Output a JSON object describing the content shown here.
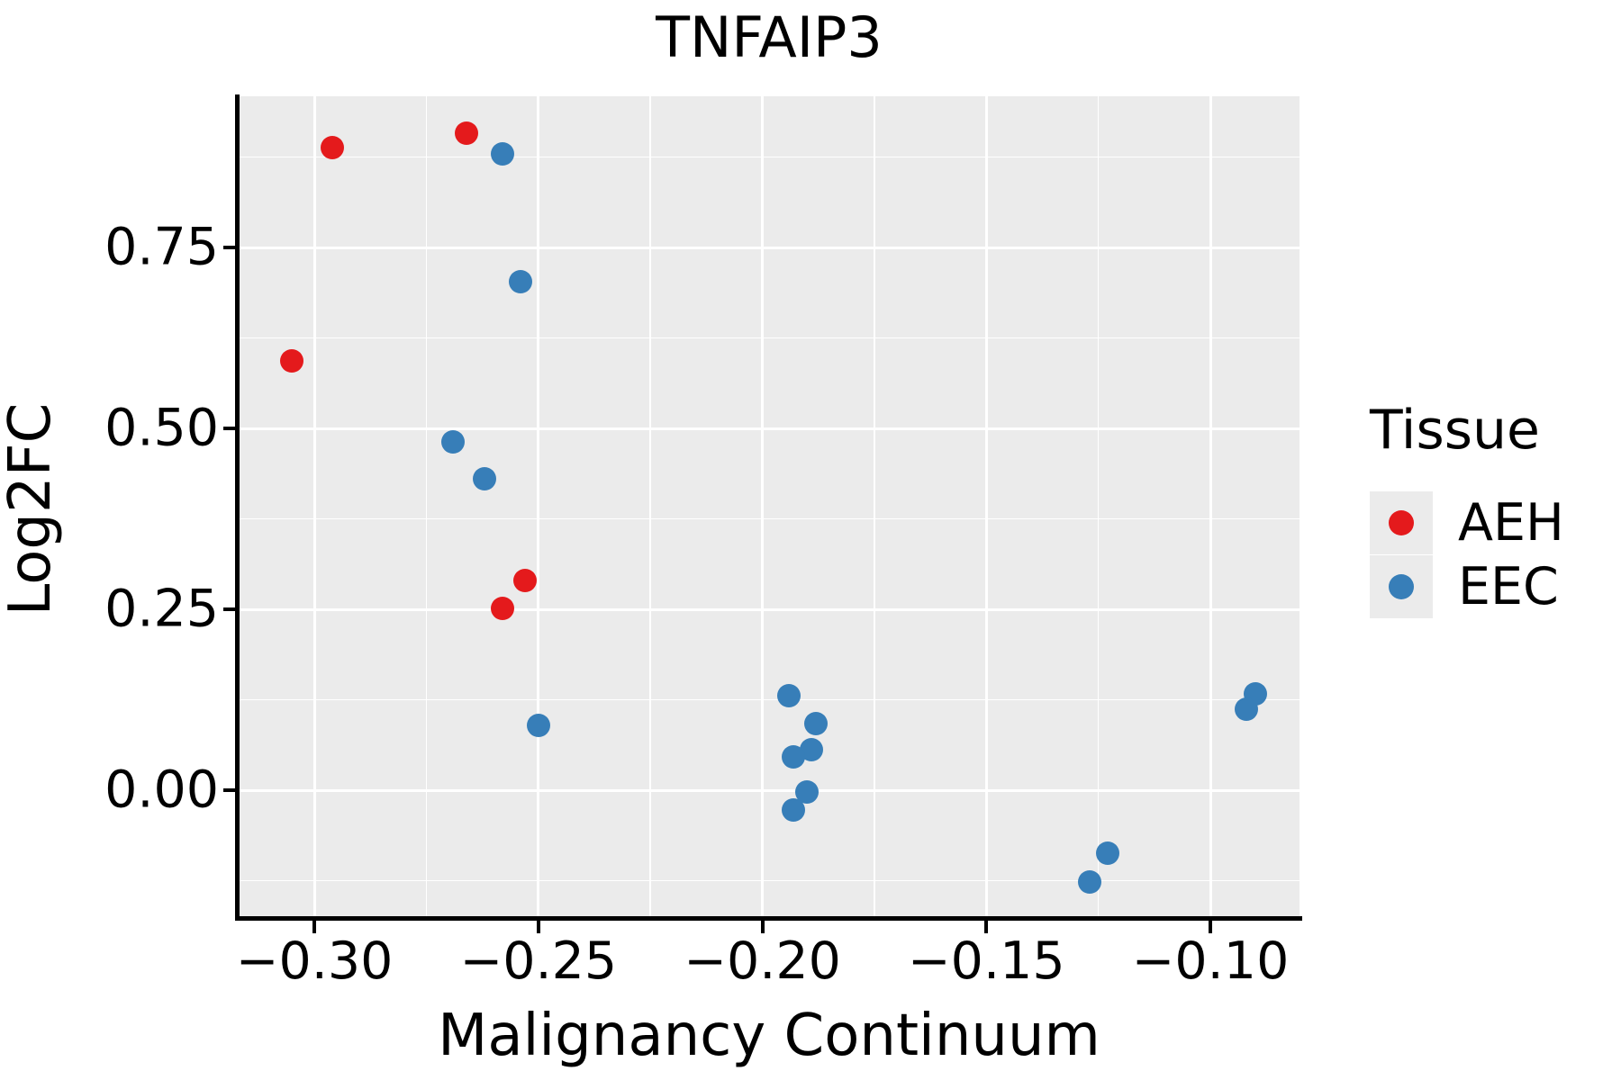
{
  "title": "TNFAIP3",
  "x_axis": {
    "label": "Malignancy Continuum",
    "range": [
      -0.3169,
      -0.0801
    ],
    "major_ticks": [
      {
        "value": -0.3,
        "label": "−0.30"
      },
      {
        "value": -0.25,
        "label": "−0.25"
      },
      {
        "value": -0.2,
        "label": "−0.20"
      },
      {
        "value": -0.15,
        "label": "−0.15"
      },
      {
        "value": -0.1,
        "label": "−0.10"
      }
    ],
    "minor_ticks": [
      -0.275,
      -0.225,
      -0.175,
      -0.125
    ]
  },
  "y_axis": {
    "label": "Log2FC",
    "range": [
      -0.1766,
      0.959
    ],
    "major_ticks": [
      {
        "value": 0.75,
        "label": "0.75"
      },
      {
        "value": 0.5,
        "label": "0.50"
      },
      {
        "value": 0.25,
        "label": "0.25"
      },
      {
        "value": 0.0,
        "label": "0.00"
      }
    ],
    "minor_ticks": [
      0.875,
      0.625,
      0.375,
      0.125,
      -0.125
    ]
  },
  "legend": {
    "title": "Tissue",
    "entries": [
      {
        "label": "AEH",
        "color": "#E41A1C"
      },
      {
        "label": "EEC",
        "color": "#377EB8"
      }
    ]
  },
  "colors": {
    "panel_background": "#EBEBEB",
    "gridline": "#FFFFFF",
    "axis": "#000000",
    "aeh": "#E41A1C",
    "eec": "#377EB8"
  },
  "chart_data": {
    "type": "scatter",
    "title": "TNFAIP3",
    "xlabel": "Malignancy Continuum",
    "ylabel": "Log2FC",
    "xlim": [
      -0.3169,
      -0.0801
    ],
    "ylim": [
      -0.1766,
      0.959
    ],
    "grid": "on",
    "legend_position": "right",
    "series": [
      {
        "name": "AEH",
        "color": "#E41A1C",
        "points": [
          {
            "x": -0.296,
            "y": 0.888
          },
          {
            "x": -0.266,
            "y": 0.908
          },
          {
            "x": -0.305,
            "y": 0.593
          },
          {
            "x": -0.253,
            "y": 0.29
          },
          {
            "x": -0.258,
            "y": 0.251
          }
        ]
      },
      {
        "name": "EEC",
        "color": "#377EB8",
        "points": [
          {
            "x": -0.258,
            "y": 0.879
          },
          {
            "x": -0.254,
            "y": 0.703
          },
          {
            "x": -0.269,
            "y": 0.481
          },
          {
            "x": -0.262,
            "y": 0.43
          },
          {
            "x": -0.25,
            "y": 0.089
          },
          {
            "x": -0.194,
            "y": 0.131
          },
          {
            "x": -0.188,
            "y": 0.092
          },
          {
            "x": -0.189,
            "y": 0.056
          },
          {
            "x": -0.193,
            "y": 0.046
          },
          {
            "x": -0.19,
            "y": -0.003
          },
          {
            "x": -0.193,
            "y": -0.027
          },
          {
            "x": -0.09,
            "y": 0.133
          },
          {
            "x": -0.092,
            "y": 0.112
          },
          {
            "x": -0.123,
            "y": -0.087
          },
          {
            "x": -0.127,
            "y": -0.127
          }
        ]
      }
    ]
  }
}
